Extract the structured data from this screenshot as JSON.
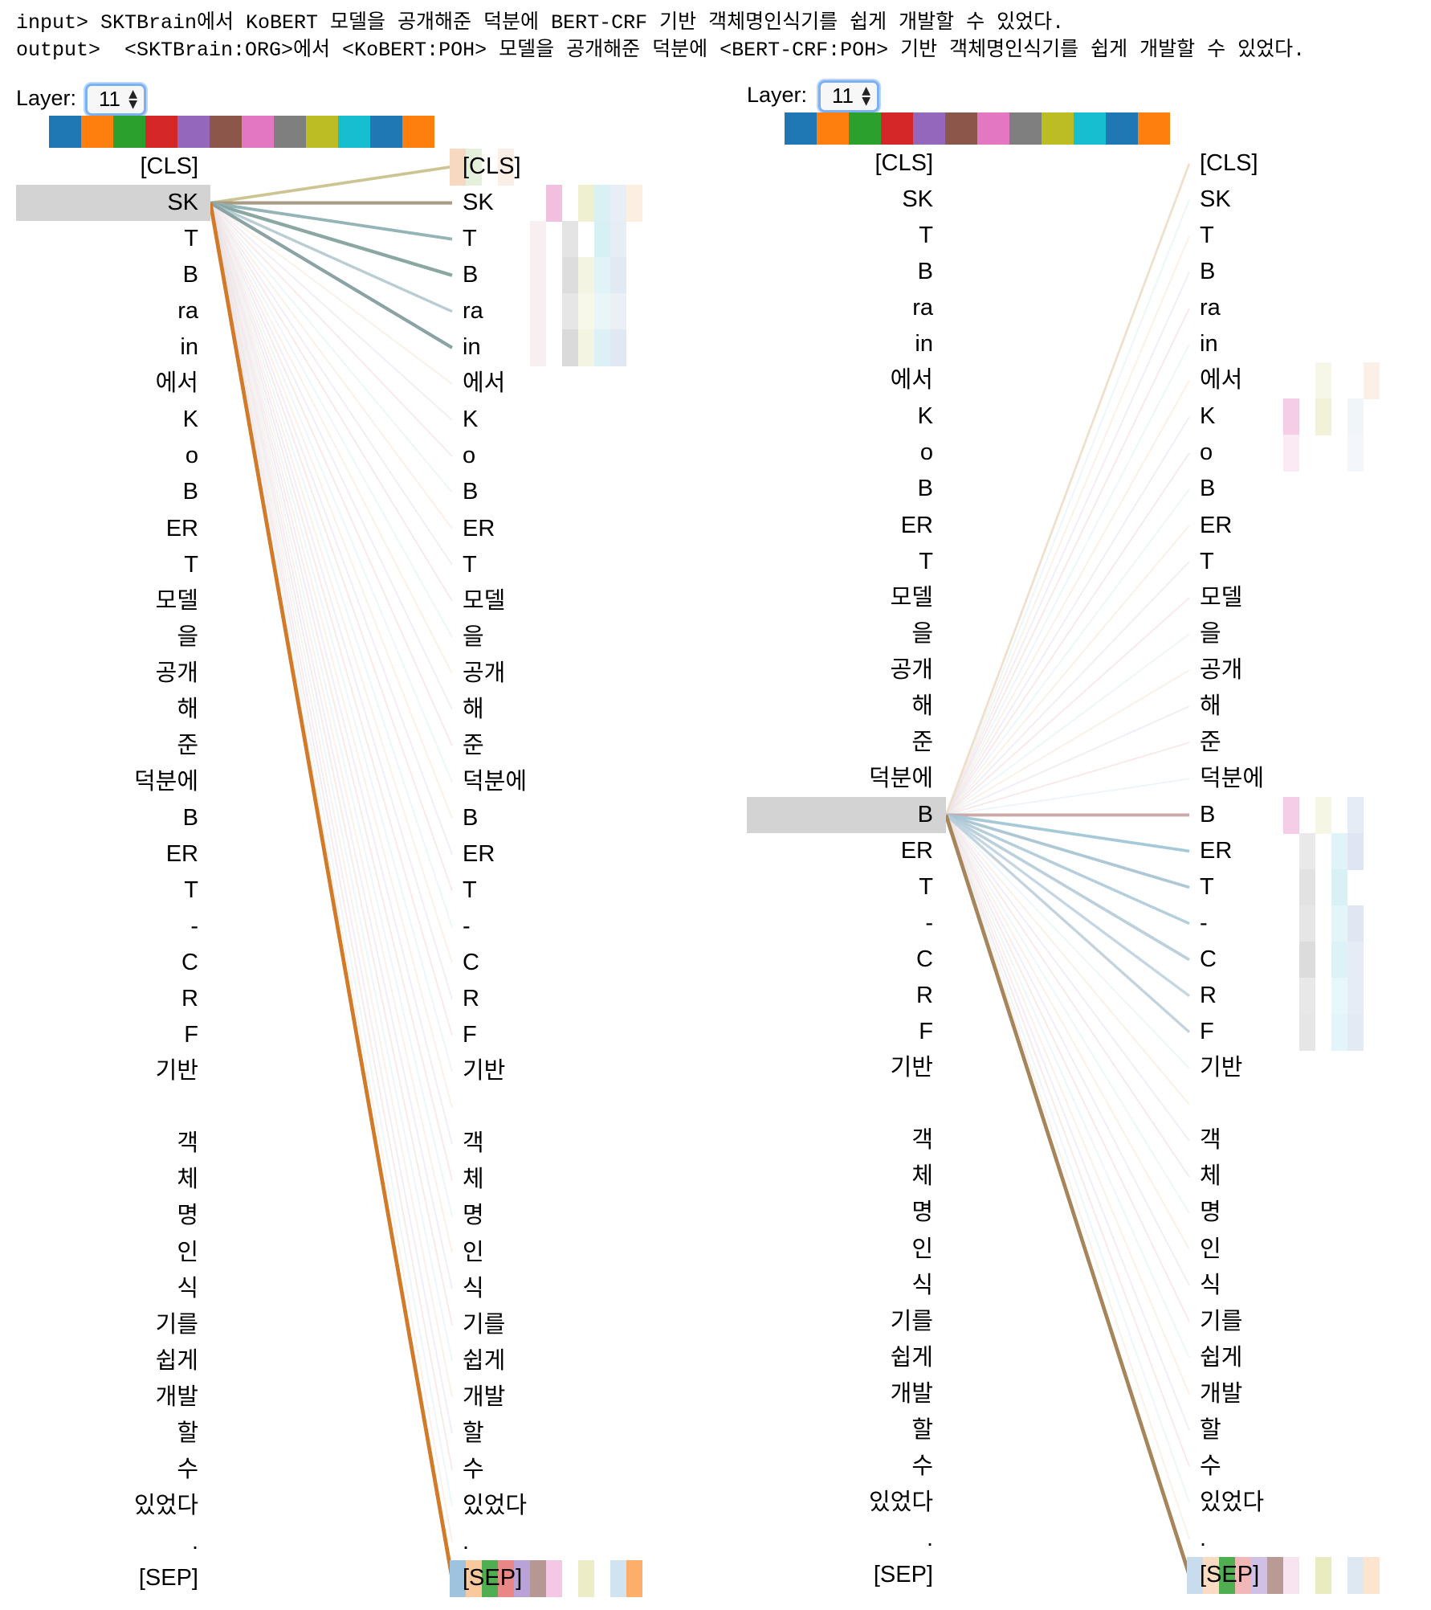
{
  "header": {
    "input_line": "input> SKTBrain에서 KoBERT 모델을 공개해준 덕분에 BERT-CRF 기반 객체명인식기를 쉽게 개발할 수 있었다.",
    "output_line": "output>  <SKTBrain:ORG>에서 <KoBERT:POH> 모델을 공개해준 덕분에 <BERT-CRF:POH> 기반 객체명인식기를 쉽게 개발할 수 있었다."
  },
  "tokens": [
    "[CLS]",
    "SK",
    "T",
    "B",
    "ra",
    "in",
    "에서",
    "K",
    "o",
    "B",
    "ER",
    "T",
    "모델",
    "을",
    "공개",
    "해",
    "준",
    "덕분에",
    "B",
    "ER",
    "T",
    "-",
    "C",
    "R",
    "F",
    "기반",
    " ",
    "객",
    "체",
    "명",
    "인",
    "식",
    "기를",
    "쉽게",
    "개발",
    "할",
    "수",
    "있었다",
    ".",
    "[SEP]"
  ],
  "head_colors": [
    "#1f77b4",
    "#ff7f0e",
    "#2ca02c",
    "#d62728",
    "#9467bd",
    "#8c564b",
    "#e377c2",
    "#7f7f7f",
    "#bcbd22",
    "#17becf",
    "#1f77b4",
    "#ff7f0e"
  ],
  "panels": [
    {
      "layer_label": "Layer:",
      "layer_value": "11",
      "selected_token_index": 1,
      "attention_weights": [
        {
          "target": 0,
          "weight": 0.55,
          "color": "#c8bf8a"
        },
        {
          "target": 1,
          "weight": 0.7,
          "color": "#a99b86"
        },
        {
          "target": 2,
          "weight": 0.6,
          "color": "#8fb0b4"
        },
        {
          "target": 3,
          "weight": 0.75,
          "color": "#8aa7a4"
        },
        {
          "target": 4,
          "weight": 0.45,
          "color": "#a9c4cc"
        },
        {
          "target": 5,
          "weight": 0.72,
          "color": "#8aa3a4"
        },
        {
          "target": 39,
          "weight": 0.95,
          "color": "#d07a2a"
        }
      ],
      "head_tiles": {
        "0": [
          "#f7d9c2",
          "#e4f0dc",
          "#ffffff",
          "#fbeee5",
          "#ffffff",
          "#ffffff",
          "#ffffff",
          "#ffffff",
          "#ffffff",
          "#ffffff",
          "#ffffff",
          "#ffffff"
        ],
        "1": [
          "#ffffff",
          "#ffffff",
          "#ffffff",
          "#ffffff",
          "#ffffff",
          "#ffffff",
          "#f2c0df",
          "#ffffff",
          "#eef0cf",
          "#d9f1f5",
          "#e8eef6",
          "#fdeee2"
        ],
        "2": [
          "#ffffff",
          "#ffffff",
          "#ffffff",
          "#ffffff",
          "#ffffff",
          "#f8f0f0",
          "#ffffff",
          "#e4e4e4",
          "#ffffff",
          "#d6f0f4",
          "#e6edf5",
          "#ffffff"
        ],
        "3": [
          "#ffffff",
          "#ffffff",
          "#ffffff",
          "#ffffff",
          "#ffffff",
          "#f8f0f0",
          "#ffffff",
          "#dddddd",
          "#f3f4e2",
          "#e1f3f6",
          "#e1e9f3",
          "#ffffff"
        ],
        "4": [
          "#ffffff",
          "#ffffff",
          "#ffffff",
          "#ffffff",
          "#ffffff",
          "#f8f0f0",
          "#ffffff",
          "#e6e6e6",
          "#f7f8ea",
          "#e9f6f8",
          "#ebf0f7",
          "#ffffff"
        ],
        "5": [
          "#ffffff",
          "#ffffff",
          "#ffffff",
          "#ffffff",
          "#ffffff",
          "#f8f0f0",
          "#ffffff",
          "#dadada",
          "#f3f4e2",
          "#dcf1f5",
          "#dfe8f3",
          "#ffffff"
        ],
        "39": [
          "#9ec3de",
          "#f9c89c",
          "#4fae4f",
          "#e98787",
          "#b8a2d6",
          "#b69791",
          "#f4c8e4",
          "#ffffff",
          "#ecedc7",
          "#ffffff",
          "#cfe3f0",
          "#fcae6a"
        ]
      }
    },
    {
      "layer_label": "Layer:",
      "layer_value": "11",
      "selected_token_index": 18,
      "attention_weights": [
        {
          "target": 0,
          "weight": 0.3,
          "color": "#ead8bd"
        },
        {
          "target": 18,
          "weight": 0.6,
          "color": "#c9a5a7"
        },
        {
          "target": 19,
          "weight": 0.55,
          "color": "#9cc4d4"
        },
        {
          "target": 20,
          "weight": 0.55,
          "color": "#a5c3d3"
        },
        {
          "target": 21,
          "weight": 0.5,
          "color": "#a9c7d6"
        },
        {
          "target": 22,
          "weight": 0.55,
          "color": "#b4ccd8"
        },
        {
          "target": 23,
          "weight": 0.45,
          "color": "#b8cfdc"
        },
        {
          "target": 24,
          "weight": 0.45,
          "color": "#b6ccd9"
        },
        {
          "target": 39,
          "weight": 0.9,
          "color": "#a58559"
        }
      ],
      "head_tiles": {
        "6": [
          "#ffffff",
          "#ffffff",
          "#ffffff",
          "#ffffff",
          "#ffffff",
          "#ffffff",
          "#ffffff",
          "#ffffff",
          "#f6f6e9",
          "#ffffff",
          "#ffffff",
          "#fcefe6"
        ],
        "7": [
          "#ffffff",
          "#ffffff",
          "#ffffff",
          "#ffffff",
          "#ffffff",
          "#ffffff",
          "#f6cde7",
          "#ffffff",
          "#f1f2d8",
          "#ffffff",
          "#f0f5fa",
          "#ffffff"
        ],
        "8": [
          "#ffffff",
          "#ffffff",
          "#ffffff",
          "#ffffff",
          "#ffffff",
          "#ffffff",
          "#fbeaf4",
          "#ffffff",
          "#ffffff",
          "#ffffff",
          "#f3f7fb",
          "#ffffff"
        ],
        "18": [
          "#ffffff",
          "#ffffff",
          "#ffffff",
          "#ffffff",
          "#ffffff",
          "#ffffff",
          "#f6cde7",
          "#ffffff",
          "#f5f6e4",
          "#ffffff",
          "#e4ecf5",
          "#ffffff"
        ],
        "19": [
          "#ffffff",
          "#ffffff",
          "#ffffff",
          "#ffffff",
          "#ffffff",
          "#ffffff",
          "#ffffff",
          "#e9e9e9",
          "#ffffff",
          "#e0f4f7",
          "#dde6f2",
          "#ffffff"
        ],
        "20": [
          "#ffffff",
          "#ffffff",
          "#ffffff",
          "#ffffff",
          "#ffffff",
          "#ffffff",
          "#ffffff",
          "#e2e2e2",
          "#ffffff",
          "#d8f1f5",
          "#ffffff",
          "#ffffff"
        ],
        "21": [
          "#ffffff",
          "#ffffff",
          "#ffffff",
          "#ffffff",
          "#ffffff",
          "#ffffff",
          "#ffffff",
          "#e6e6e6",
          "#ffffff",
          "#e4f5f8",
          "#dfe7f2",
          "#ffffff"
        ],
        "22": [
          "#ffffff",
          "#ffffff",
          "#ffffff",
          "#ffffff",
          "#ffffff",
          "#ffffff",
          "#ffffff",
          "#dcdcdc",
          "#ffffff",
          "#dcf2f6",
          "#e5ecf5",
          "#ffffff"
        ],
        "23": [
          "#ffffff",
          "#ffffff",
          "#ffffff",
          "#ffffff",
          "#ffffff",
          "#ffffff",
          "#ffffff",
          "#e8e8e8",
          "#ffffff",
          "#e8f7f9",
          "#e5ecf5",
          "#ffffff"
        ],
        "24": [
          "#ffffff",
          "#ffffff",
          "#ffffff",
          "#ffffff",
          "#ffffff",
          "#ffffff",
          "#ffffff",
          "#e6e6e6",
          "#ffffff",
          "#e3f5f8",
          "#e2eaf4",
          "#ffffff"
        ],
        "39": [
          "#c9dced",
          "#fbdcc2",
          "#4fae4f",
          "#f2b8b8",
          "#cfc0e5",
          "#b99a94",
          "#f7e4f0",
          "#ffffff",
          "#e9ebc0",
          "#ffffff",
          "#dde8f3",
          "#fde4cf"
        ]
      }
    }
  ]
}
